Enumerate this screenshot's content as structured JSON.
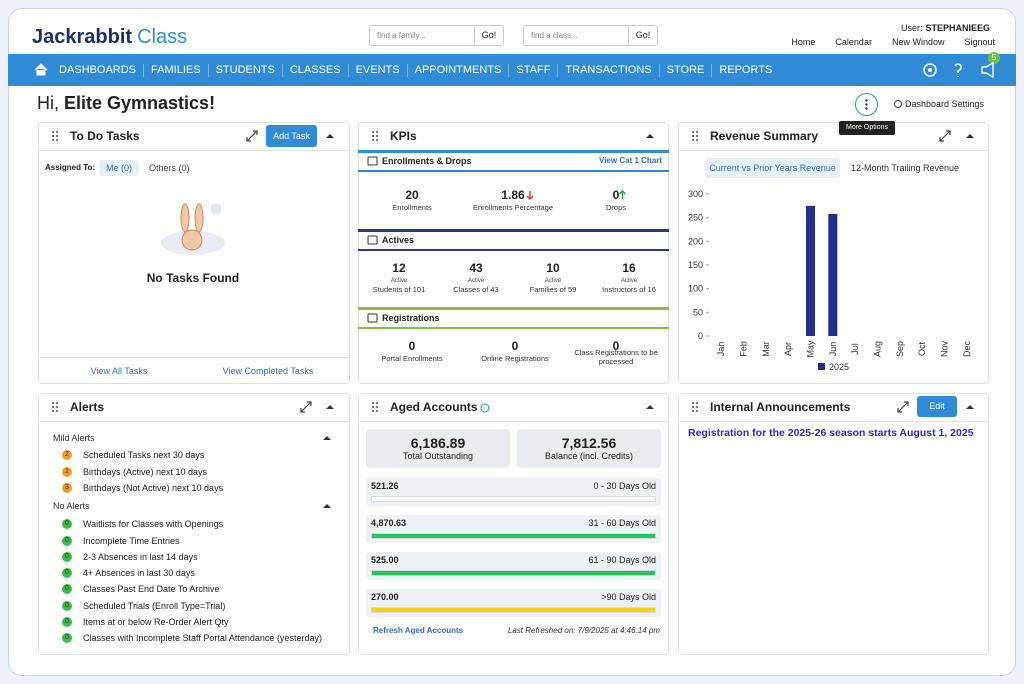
{
  "header": {
    "logo_main": "Jackrabbit",
    "logo_sub": "Class",
    "family_placeholder": "find a family...",
    "class_placeholder": "find a class...",
    "go": "Go!",
    "user_label": "User:",
    "user": "STEPHANIEEG",
    "links": [
      "Home",
      "Calendar",
      "New Window",
      "Signout"
    ]
  },
  "nav": {
    "items": [
      "DASHBOARDS",
      "FAMILIES",
      "STUDENTS",
      "CLASSES",
      "EVENTS",
      "APPOINTMENTS",
      "STAFF",
      "TRANSACTIONS",
      "STORE",
      "REPORTS"
    ],
    "badge": "5"
  },
  "greeting": {
    "hi": "Hi,",
    "name": "Elite Gymnastics!",
    "settings": "Dashboard Settings",
    "tooltip": "More Options"
  },
  "todo": {
    "title": "To Do Tasks",
    "add": "Add Task",
    "assigned_to": "Assigned To:",
    "me": "Me (0)",
    "others": "Others (0)",
    "empty": "No Tasks Found",
    "view_all": "View All Tasks",
    "view_completed": "View Completed Tasks"
  },
  "kpis": {
    "title": "KPIs",
    "sections": [
      {
        "title": "Enrollments & Drops",
        "link": "View Cat 1 Chart",
        "color": "#2f8bd6",
        "items": [
          {
            "value": "20",
            "label": "Enrollments"
          },
          {
            "value": "1.86",
            "label": "Enrollments Percentage",
            "trend": "down"
          },
          {
            "value": "0",
            "label": "Drops",
            "trend": "up"
          }
        ]
      },
      {
        "title": "Actives",
        "color": "#2b3a85",
        "items": [
          {
            "value": "12",
            "sub": "Active",
            "label": "Students of 101"
          },
          {
            "value": "43",
            "sub": "Active",
            "label": "Classes of 43"
          },
          {
            "value": "10",
            "sub": "Active",
            "label": "Families of 59"
          },
          {
            "value": "16",
            "sub": "Active",
            "label": "Instructors of 16"
          }
        ]
      },
      {
        "title": "Registrations",
        "color": "#7dc242",
        "items": [
          {
            "value": "0",
            "label": "Portal Enrollments"
          },
          {
            "value": "0",
            "label": "Online Registrations"
          },
          {
            "value": "0",
            "label": "Class Registrations to be processed"
          }
        ]
      }
    ]
  },
  "revenue": {
    "title": "Revenue Summary",
    "tabs": [
      "Current vs Prior Years Revenue",
      "12-Month Trailing Revenue"
    ]
  },
  "chart_data": {
    "type": "bar",
    "categories": [
      "Jan",
      "Feb",
      "Mar",
      "Apr",
      "May",
      "Jun",
      "Jul",
      "Aug",
      "Sep",
      "Oct",
      "Nov",
      "Dec"
    ],
    "series": [
      {
        "name": "2025",
        "color": "#1f2f8a",
        "values": [
          0,
          0,
          0,
          0,
          275,
          258,
          0,
          0,
          0,
          0,
          0,
          0
        ]
      }
    ],
    "ylim": [
      0,
      300
    ],
    "yticks": [
      0,
      50,
      100,
      150,
      200,
      250,
      300
    ]
  },
  "alerts": {
    "title": "Alerts",
    "groups": [
      {
        "title": "Mild Alerts",
        "items": [
          {
            "count": "2",
            "color": "#f0a020",
            "text": "Scheduled Tasks next 30 days"
          },
          {
            "count": "1",
            "color": "#f0a020",
            "text": "Birthdays (Active) next 10 days"
          },
          {
            "count": "3",
            "color": "#f0a020",
            "text": "Birthdays (Not Active) next 10 days"
          }
        ]
      },
      {
        "title": "No Alerts",
        "items": [
          {
            "count": "0",
            "color": "#3dbb4a",
            "text": "Waitlists for Classes with Openings"
          },
          {
            "count": "0",
            "color": "#3dbb4a",
            "text": "Incomplete Time Entries"
          },
          {
            "count": "0",
            "color": "#3dbb4a",
            "text": "2-3 Absences in last 14 days"
          },
          {
            "count": "0",
            "color": "#3dbb4a",
            "text": "4+ Absences in last 30 days"
          },
          {
            "count": "0",
            "color": "#3dbb4a",
            "text": "Classes Past End Date To Archive"
          },
          {
            "count": "0",
            "color": "#3dbb4a",
            "text": "Scheduled Trials (Enroll Type=Trial)"
          },
          {
            "count": "0",
            "color": "#3dbb4a",
            "text": "Items at or below Re-Order Alert Qty"
          },
          {
            "count": "0",
            "color": "#3dbb4a",
            "text": "Classes with Incomplete Staff Portal Attendance (yesterday)"
          }
        ]
      }
    ]
  },
  "aged": {
    "title": "Aged Accounts",
    "total": {
      "value": "6,186.89",
      "label": "Total Outstanding"
    },
    "balance": {
      "value": "7,812.56",
      "label": "Balance (incl. Credits)"
    },
    "buckets": [
      {
        "amount": "521.26",
        "label": "0 - 30 Days Old",
        "color": "#ffffff"
      },
      {
        "amount": "4,870.63",
        "label": "31 - 60 Days Old",
        "color": "#22c55e"
      },
      {
        "amount": "525.00",
        "label": "61 - 90 Days Old",
        "color": "#22c55e"
      },
      {
        "amount": "270.00",
        "label": ">90 Days Old",
        "color": "#f2d70c"
      }
    ],
    "refresh": "Refresh Aged Accounts",
    "last_refreshed": "Last Refreshed on: 7/9/2025 at 4:46:14 pm"
  },
  "announcements": {
    "title": "Internal Announcements",
    "edit": "Edit",
    "text": "Registration for the 2025-26 season starts August 1, 2025"
  }
}
